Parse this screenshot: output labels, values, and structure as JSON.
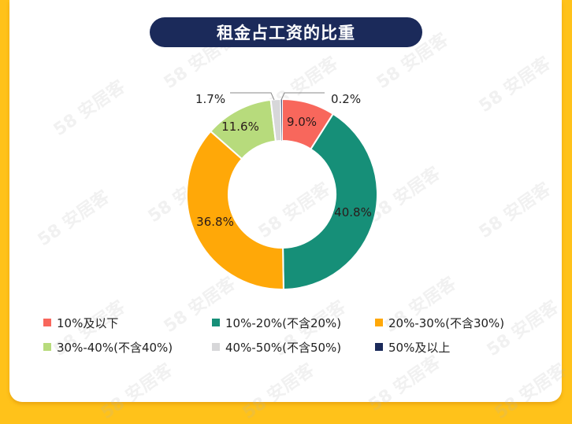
{
  "title": "租金占工资的比重",
  "watermark": "58 安居客",
  "colors": {
    "background": "#ffc21a",
    "card": "#ffffff",
    "title_bar": "#1b2a5a"
  },
  "chart_data": {
    "type": "pie",
    "subtype": "donut",
    "title": "租金占工资的比重",
    "categories": [
      "10%及以下",
      "10%-20%(不含20%)",
      "20%-30%(不含30%)",
      "30%-40%(不含40%)",
      "40%-50%(不含50%)",
      "50%及以上"
    ],
    "values": [
      9.0,
      40.8,
      36.8,
      11.6,
      1.7,
      0.2
    ],
    "labels": [
      "9.0%",
      "40.8%",
      "36.8%",
      "11.6%",
      "1.7%",
      "0.2%"
    ],
    "colors": [
      "#f8675c",
      "#168f78",
      "#ffa808",
      "#b7db7c",
      "#d7d7d9",
      "#1b2a5a"
    ],
    "legend_position": "bottom",
    "start_angle": "12 o'clock, clockwise"
  },
  "legend": [
    {
      "label": "10%及以下",
      "color": "#f8675c"
    },
    {
      "label": "10%-20%(不含20%)",
      "color": "#168f78"
    },
    {
      "label": "20%-30%(不含30%)",
      "color": "#ffa808"
    },
    {
      "label": "30%-40%(不含40%)",
      "color": "#b7db7c"
    },
    {
      "label": "40%-50%(不含50%)",
      "color": "#d7d7d9"
    },
    {
      "label": "50%及以上",
      "color": "#1b2a5a"
    }
  ]
}
